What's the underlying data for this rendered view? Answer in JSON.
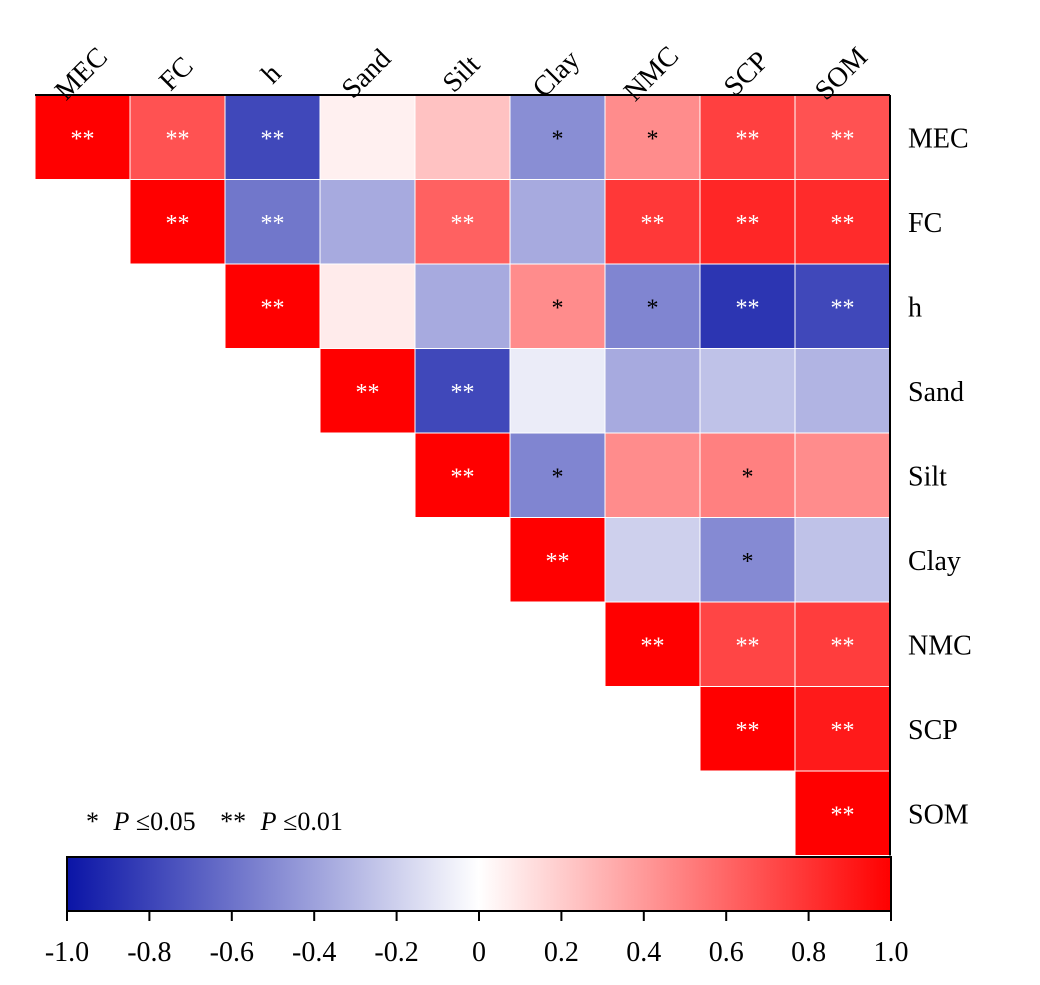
{
  "chart_data": {
    "type": "heatmap",
    "variables": [
      "MEC",
      "FC",
      "h",
      "Sand",
      "Silt",
      "Clay",
      "NMC",
      "SCP",
      "SOM"
    ],
    "layout": "upper-triangle",
    "colormap": {
      "low": "#0a14a6",
      "mid": "#ffffff",
      "high": "#ff0000"
    },
    "value_range": [
      -1.0,
      1.0
    ],
    "cells": [
      {
        "row": "MEC",
        "col": "MEC",
        "value": 1.0,
        "sig": "**"
      },
      {
        "row": "MEC",
        "col": "FC",
        "value": 0.68,
        "sig": "**"
      },
      {
        "row": "MEC",
        "col": "h",
        "value": -0.78,
        "sig": "**"
      },
      {
        "row": "MEC",
        "col": "Sand",
        "value": 0.06,
        "sig": ""
      },
      {
        "row": "MEC",
        "col": "Silt",
        "value": 0.24,
        "sig": ""
      },
      {
        "row": "MEC",
        "col": "Clay",
        "value": -0.48,
        "sig": "*"
      },
      {
        "row": "MEC",
        "col": "NMC",
        "value": 0.45,
        "sig": "*"
      },
      {
        "row": "MEC",
        "col": "SCP",
        "value": 0.75,
        "sig": "**"
      },
      {
        "row": "MEC",
        "col": "SOM",
        "value": 0.68,
        "sig": "**"
      },
      {
        "row": "FC",
        "col": "FC",
        "value": 1.0,
        "sig": "**"
      },
      {
        "row": "FC",
        "col": "h",
        "value": -0.58,
        "sig": "**"
      },
      {
        "row": "FC",
        "col": "Sand",
        "value": -0.36,
        "sig": ""
      },
      {
        "row": "FC",
        "col": "Silt",
        "value": 0.62,
        "sig": "**"
      },
      {
        "row": "FC",
        "col": "Clay",
        "value": -0.36,
        "sig": ""
      },
      {
        "row": "FC",
        "col": "NMC",
        "value": 0.78,
        "sig": "**"
      },
      {
        "row": "FC",
        "col": "SCP",
        "value": 0.85,
        "sig": "**"
      },
      {
        "row": "FC",
        "col": "SOM",
        "value": 0.83,
        "sig": "**"
      },
      {
        "row": "h",
        "col": "h",
        "value": 1.0,
        "sig": "**"
      },
      {
        "row": "h",
        "col": "Sand",
        "value": 0.08,
        "sig": ""
      },
      {
        "row": "h",
        "col": "Silt",
        "value": -0.36,
        "sig": ""
      },
      {
        "row": "h",
        "col": "Clay",
        "value": 0.45,
        "sig": "*"
      },
      {
        "row": "h",
        "col": "NMC",
        "value": -0.52,
        "sig": "*"
      },
      {
        "row": "h",
        "col": "SCP",
        "value": -0.86,
        "sig": "**"
      },
      {
        "row": "h",
        "col": "SOM",
        "value": -0.78,
        "sig": "**"
      },
      {
        "row": "Sand",
        "col": "Sand",
        "value": 1.0,
        "sig": "**"
      },
      {
        "row": "Sand",
        "col": "Silt",
        "value": -0.78,
        "sig": "**"
      },
      {
        "row": "Sand",
        "col": "Clay",
        "value": -0.08,
        "sig": ""
      },
      {
        "row": "Sand",
        "col": "NMC",
        "value": -0.36,
        "sig": ""
      },
      {
        "row": "Sand",
        "col": "SCP",
        "value": -0.26,
        "sig": ""
      },
      {
        "row": "Sand",
        "col": "SOM",
        "value": -0.32,
        "sig": ""
      },
      {
        "row": "Silt",
        "col": "Silt",
        "value": 1.0,
        "sig": "**"
      },
      {
        "row": "Silt",
        "col": "Clay",
        "value": -0.52,
        "sig": "*"
      },
      {
        "row": "Silt",
        "col": "NMC",
        "value": 0.45,
        "sig": ""
      },
      {
        "row": "Silt",
        "col": "SCP",
        "value": 0.5,
        "sig": "*"
      },
      {
        "row": "Silt",
        "col": "SOM",
        "value": 0.45,
        "sig": ""
      },
      {
        "row": "Clay",
        "col": "Clay",
        "value": 1.0,
        "sig": "**"
      },
      {
        "row": "Clay",
        "col": "NMC",
        "value": -0.2,
        "sig": ""
      },
      {
        "row": "Clay",
        "col": "SCP",
        "value": -0.5,
        "sig": "*"
      },
      {
        "row": "Clay",
        "col": "SOM",
        "value": -0.26,
        "sig": ""
      },
      {
        "row": "NMC",
        "col": "NMC",
        "value": 1.0,
        "sig": "**"
      },
      {
        "row": "NMC",
        "col": "SCP",
        "value": 0.73,
        "sig": "**"
      },
      {
        "row": "NMC",
        "col": "SOM",
        "value": 0.76,
        "sig": "**"
      },
      {
        "row": "SCP",
        "col": "SCP",
        "value": 1.0,
        "sig": "**"
      },
      {
        "row": "SCP",
        "col": "SOM",
        "value": 0.9,
        "sig": "**"
      },
      {
        "row": "SOM",
        "col": "SOM",
        "value": 1.0,
        "sig": "**"
      }
    ],
    "colorbar": {
      "ticks": [
        "-1.0",
        "-0.8",
        "-0.6",
        "-0.4",
        "-0.2",
        "0",
        "0.2",
        "0.4",
        "0.6",
        "0.8",
        "1.0"
      ],
      "range": [
        -1.0,
        1.0
      ],
      "placement": "bottom"
    },
    "significance_note": {
      "single_mark": "*",
      "single_label": "P",
      "single_threshold": "≤0.05",
      "double_mark": "**",
      "double_label": "P",
      "double_threshold": "≤0.01"
    }
  }
}
